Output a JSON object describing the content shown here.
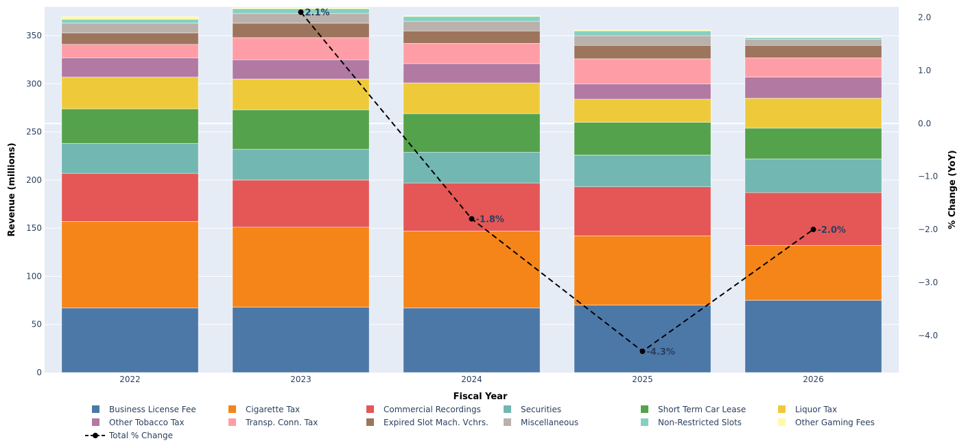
{
  "chart_data": {
    "type": "bar",
    "stacked": true,
    "categories": [
      "2022",
      "2023",
      "2024",
      "2025",
      "2026"
    ],
    "xlabel": "Fiscal Year",
    "ylabel": "Revenue (millions)",
    "y2label": "% Change (YoY)",
    "ylim": [
      0,
      380
    ],
    "y2lim": [
      -4.7,
      2.2
    ],
    "yticks": [
      0,
      50,
      100,
      150,
      200,
      250,
      300,
      350
    ],
    "y2ticks": [
      2.0,
      1.0,
      0.0,
      -1.0,
      -2.0,
      -3.0,
      -4.0
    ],
    "y2ticklabels": [
      "2.0",
      "1.0",
      "0.0",
      "−1.0",
      "−2.0",
      "−3.0",
      "−4.0"
    ],
    "legend_position": "bottom",
    "series": [
      {
        "name": "Business License Fee",
        "color": "#4c78a8",
        "values": [
          67,
          68,
          67,
          70,
          75
        ]
      },
      {
        "name": "Cigarette Tax",
        "color": "#f58518",
        "values": [
          90,
          83,
          80,
          72,
          57
        ]
      },
      {
        "name": "Commercial Recordings",
        "color": "#e45756",
        "values": [
          50,
          49,
          50,
          51,
          55
        ]
      },
      {
        "name": "Securities",
        "color": "#72b7b2",
        "values": [
          31,
          32,
          32,
          33,
          35
        ]
      },
      {
        "name": "Short Term Car Lease",
        "color": "#54a24b",
        "values": [
          36,
          41,
          40,
          34,
          32
        ]
      },
      {
        "name": "Liquor Tax",
        "color": "#eeca3b",
        "values": [
          33,
          32,
          32,
          24,
          31
        ]
      },
      {
        "name": "Other Tobacco Tax",
        "color": "#b279a2",
        "values": [
          20,
          20,
          20,
          16,
          22
        ]
      },
      {
        "name": "Transp. Conn. Tax",
        "color": "#ff9da6",
        "values": [
          14,
          23,
          21,
          26,
          20
        ]
      },
      {
        "name": "Expired Slot Mach. Vchrs.",
        "color": "#9d755d",
        "values": [
          12,
          15,
          13,
          14,
          13
        ]
      },
      {
        "name": "Miscellaneous",
        "color": "#bab0ac",
        "values": [
          10,
          10,
          10,
          10,
          6
        ]
      },
      {
        "name": "Non-Restricted Slots",
        "color": "#86d0c3",
        "values": [
          4,
          5,
          5,
          5,
          2
        ]
      },
      {
        "name": "Other Gaming Fees",
        "color": "#fffaa8",
        "values": [
          3,
          1,
          1,
          1,
          1
        ]
      }
    ],
    "line_series": {
      "name": "Total % Change",
      "color": "#000000",
      "x": [
        "2023",
        "2024",
        "2025",
        "2026"
      ],
      "values": [
        2.1,
        -1.8,
        -4.3,
        -2.0
      ],
      "labels": [
        "2.1%",
        "-1.8%",
        "-4.3%",
        "-2.0%"
      ]
    }
  }
}
